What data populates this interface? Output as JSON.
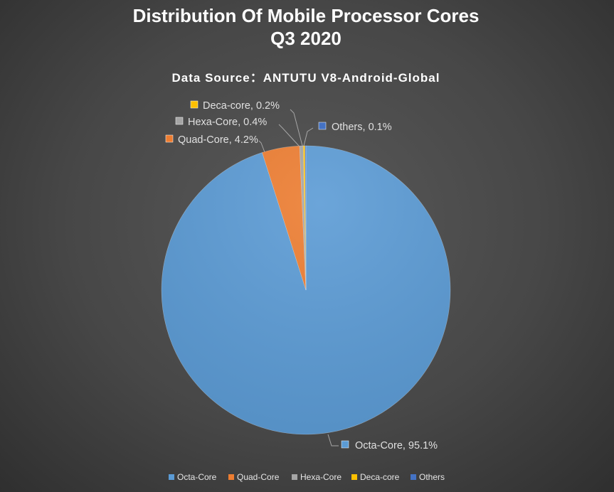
{
  "chart_data": {
    "type": "pie",
    "title": [
      "Distribution Of Mobile Processor Cores",
      "Q3 2020"
    ],
    "subtitle": "Data Source：ANTUTU V8-Android-Global",
    "categories": [
      "Octa-Core",
      "Quad-Core",
      "Hexa-Core",
      "Deca-core",
      "Others"
    ],
    "values": [
      95.1,
      4.2,
      0.4,
      0.2,
      0.1
    ],
    "labels": [
      "Octa-Core, 95.1%",
      "Quad-Core, 4.2%",
      "Hexa-Core, 0.4%",
      "Deca-core, 0.2%",
      "Others, 0.1%"
    ],
    "colors": [
      "#5b9bd5",
      "#ed7d31",
      "#a5a5a5",
      "#ffc000",
      "#4472c4"
    ],
    "legend_position": "bottom",
    "unit": "%"
  }
}
